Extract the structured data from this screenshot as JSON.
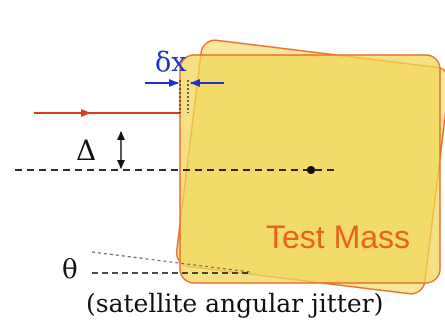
{
  "labels": {
    "delta_x": "δx",
    "delta": "Δ",
    "theta": "θ",
    "test_mass": "Test Mass",
    "caption": "(satellite angular jitter)"
  },
  "colors": {
    "background": "#ffffff",
    "mass_fill": "#f2d75a",
    "mass_stroke": "#e8712a",
    "mass_label": "#e8611e",
    "beam": "#e03a1e",
    "delta_x_marker": "#2233cc",
    "line_black": "#111111",
    "shadow_line": "#666666"
  }
}
